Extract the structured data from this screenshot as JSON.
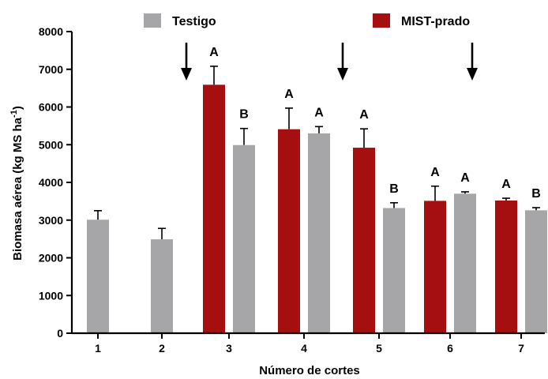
{
  "chart_data": {
    "type": "bar",
    "xlabel": "Número de cortes",
    "ylabel_main": "Biomasa aérea (kg MS ha",
    "ylabel_sup": "-1",
    "ylabel_close": ")",
    "ylim": [
      0,
      8000
    ],
    "yticks": [
      0,
      1000,
      2000,
      3000,
      4000,
      5000,
      6000,
      7000,
      8000
    ],
    "categories": [
      "1",
      "2",
      "3",
      "4",
      "5",
      "6",
      "7"
    ],
    "legend_position": "top",
    "series": [
      {
        "name": "Testigo",
        "color": "#a6a6a8",
        "values": [
          3010,
          2490,
          4990,
          5300,
          3320,
          3700,
          3260
        ],
        "errors": [
          240,
          290,
          440,
          180,
          140,
          50,
          70
        ],
        "labels": [
          "",
          "",
          "B",
          "A",
          "B",
          "A",
          "B"
        ]
      },
      {
        "name": "MIST-prado",
        "color": "#a50f0f",
        "values": [
          null,
          null,
          6590,
          5410,
          4920,
          3510,
          3520
        ],
        "errors": [
          null,
          null,
          490,
          560,
          500,
          390,
          60
        ],
        "labels": [
          "",
          "",
          "A",
          "A",
          "A",
          "A",
          "A"
        ]
      }
    ],
    "arrows_after_category": [
      "2",
      "4",
      "6"
    ]
  }
}
